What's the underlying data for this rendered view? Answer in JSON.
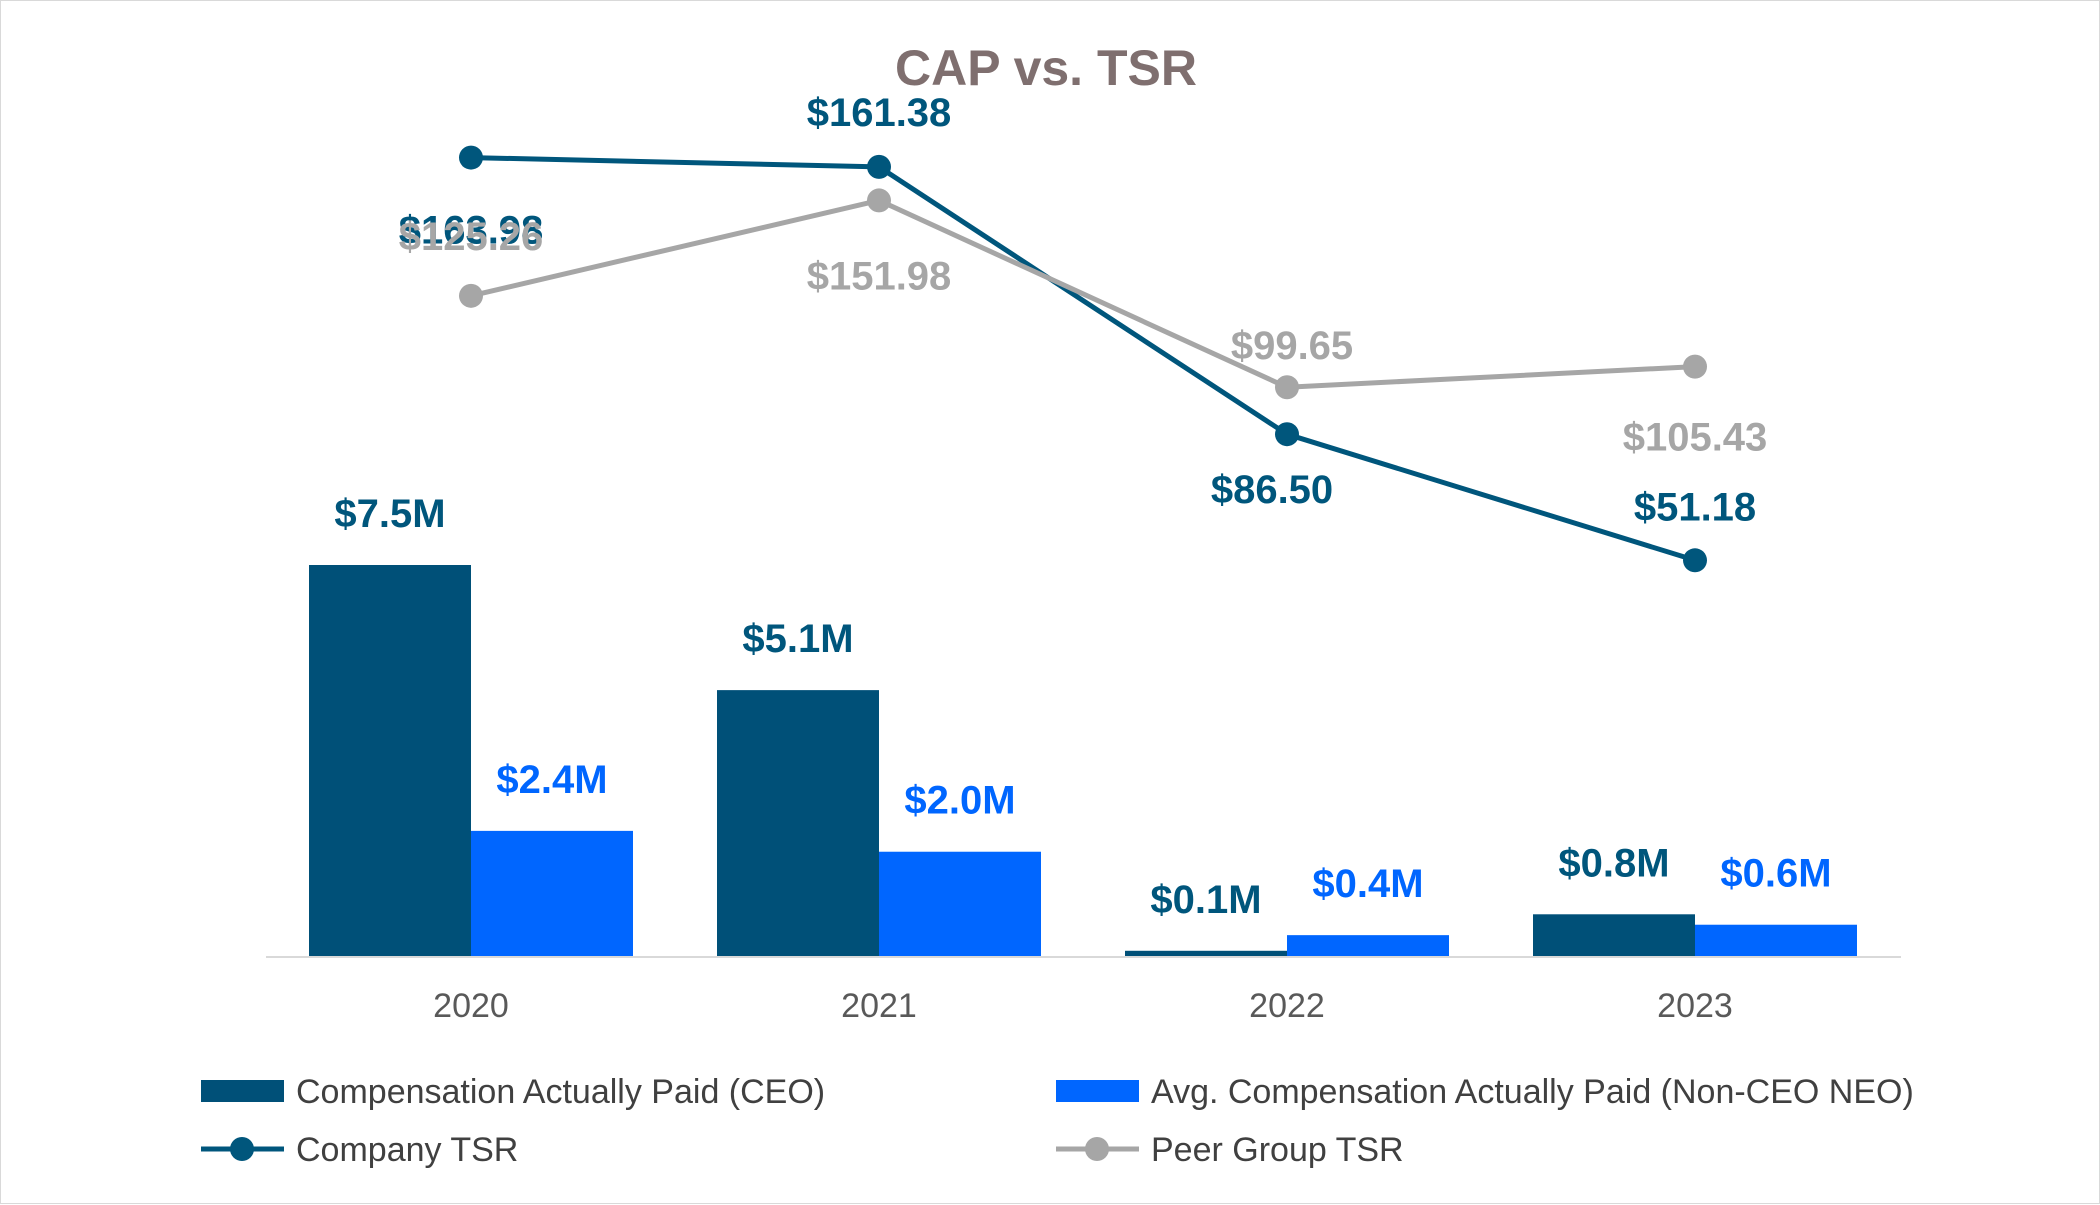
{
  "chart_data": {
    "type": "bar",
    "title": "CAP vs. TSR",
    "categories": [
      "2020",
      "2021",
      "2022",
      "2023"
    ],
    "colors": {
      "ceo_bar": "#005078",
      "neo_bar": "#0066ff",
      "company_tsr": "#00567c",
      "peer_tsr": "#a6a6a6",
      "title": "#7f6f6f"
    },
    "bar_series": [
      {
        "name": "Compensation Actually Paid (CEO)",
        "values": [
          7.5,
          5.1,
          0.1,
          0.8
        ],
        "labels": [
          "$7.5M",
          "$5.1M",
          "$0.1M",
          "$0.8M"
        ]
      },
      {
        "name": "Avg. Compensation Actually Paid (Non-CEO NEO)",
        "values": [
          2.4,
          2.0,
          0.4,
          0.6
        ],
        "labels": [
          "$2.4M",
          "$2.0M",
          "$0.4M",
          "$0.6M"
        ]
      }
    ],
    "line_series": [
      {
        "name": "Company TSR",
        "values": [
          163.98,
          161.38,
          86.5,
          51.18
        ],
        "labels": [
          "$163.98",
          "$161.38",
          "$86.50",
          "$51.18"
        ]
      },
      {
        "name": "Peer Group TSR",
        "values": [
          125.26,
          151.98,
          99.65,
          105.43
        ],
        "labels": [
          "$125.26",
          "$151.98",
          "$99.65",
          "$105.43"
        ]
      }
    ],
    "legend_position": "bottom",
    "grid": false
  }
}
